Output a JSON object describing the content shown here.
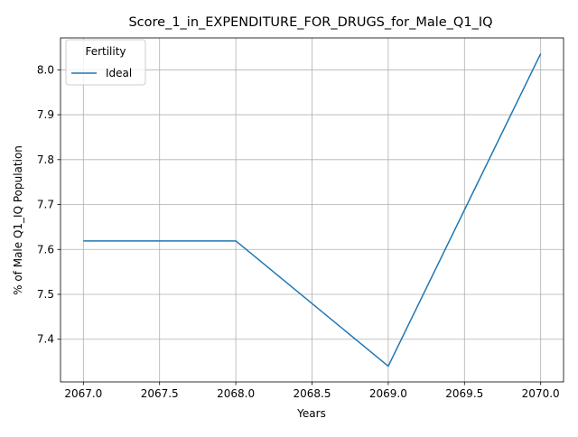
{
  "chart_data": {
    "type": "line",
    "title": "Score_1_in_EXPENDITURE_FOR_DRUGS_for_Male_Q1_IQ",
    "xlabel": "Years",
    "ylabel": "% of Male Q1_IQ Population",
    "x": [
      2067,
      2068,
      2069,
      2070
    ],
    "series": [
      {
        "name": "Ideal",
        "color": "#1f77b4",
        "values": [
          7.619,
          7.619,
          7.34,
          8.036
        ]
      }
    ],
    "xlim": [
      2066.85,
      2070.15
    ],
    "ylim": [
      7.305,
      8.071
    ],
    "xticks": [
      2067.0,
      2067.5,
      2068.0,
      2068.5,
      2069.0,
      2069.5,
      2070.0
    ],
    "xtick_labels": [
      "2067.0",
      "2067.5",
      "2068.0",
      "2068.5",
      "2069.0",
      "2069.5",
      "2070.0"
    ],
    "yticks": [
      7.4,
      7.5,
      7.6,
      7.7,
      7.8,
      7.9,
      8.0
    ],
    "ytick_labels": [
      "7.4",
      "7.5",
      "7.6",
      "7.7",
      "7.8",
      "7.9",
      "8.0"
    ],
    "grid": true,
    "legend": {
      "title": "Fertility",
      "placement": "top-left"
    }
  }
}
